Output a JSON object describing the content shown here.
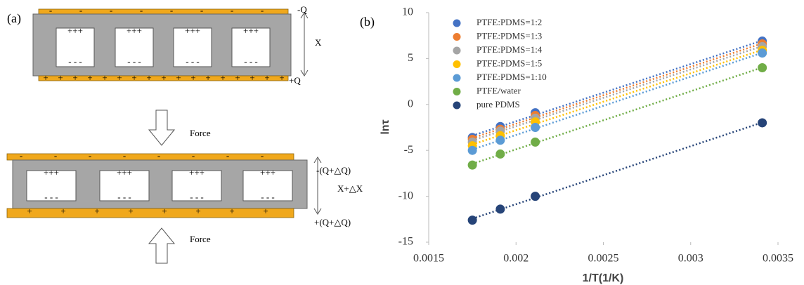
{
  "panel_a": {
    "label": "(a)",
    "charge_neg": "-",
    "charge_pos": "+",
    "inner_top": "+++",
    "inner_bottom": "- - -",
    "top_neg_q": "-Q",
    "top_pos_q": "+Q",
    "top_x": "X",
    "force": "Force",
    "bottom_neg_q": "-(Q+△Q)",
    "bottom_pos_q": "+(Q+△Q)",
    "bottom_x": "X+△X"
  },
  "chart_data": {
    "type": "scatter",
    "panel_label": "(b)",
    "x_label": "1/T(1/K)",
    "y_label": "lnτ",
    "x": [
      0.00175,
      0.00191,
      0.00211,
      0.00341
    ],
    "xlim": [
      0.0015,
      0.0035
    ],
    "xticks": [
      0.0015,
      0.002,
      0.0025,
      0.003,
      0.0035
    ],
    "ylim": [
      -15,
      10
    ],
    "yticks": [
      -15,
      -10,
      -5,
      0,
      5,
      10
    ],
    "trendline": "linear",
    "series": [
      {
        "name": "PTFE:PDMS=1:2",
        "color": "#4472c4",
        "values": [
          -3.6,
          -2.4,
          -0.9,
          6.9
        ]
      },
      {
        "name": "PTFE:PDMS=1:3",
        "color": "#ed7d31",
        "values": [
          -3.8,
          -2.7,
          -1.2,
          6.6
        ]
      },
      {
        "name": "PTFE:PDMS=1:4",
        "color": "#a5a5a5",
        "values": [
          -4.1,
          -2.9,
          -1.5,
          6.3
        ]
      },
      {
        "name": "PTFE:PDMS=1:5",
        "color": "#ffc000",
        "values": [
          -4.5,
          -3.4,
          -1.9,
          5.9
        ]
      },
      {
        "name": "PTFE:PDMS=1:10",
        "color": "#5b9bd5",
        "values": [
          -5.0,
          -3.9,
          -2.5,
          5.6
        ]
      },
      {
        "name": "PTFE/water",
        "color": "#70ad47",
        "values": [
          -6.6,
          -5.4,
          -4.1,
          4.0
        ]
      },
      {
        "name": "pure PDMS",
        "color": "#264478",
        "values": [
          -12.6,
          -11.4,
          -10.0,
          -2.0
        ]
      }
    ]
  }
}
